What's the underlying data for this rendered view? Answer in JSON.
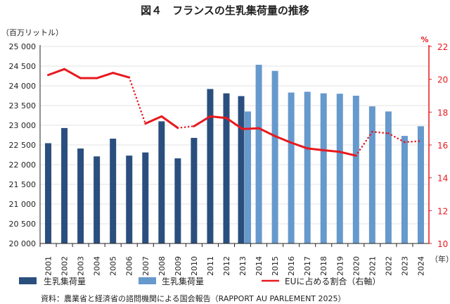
{
  "chart_data": {
    "type": "bar",
    "title": "図４　フランスの生乳集荷量の推移",
    "ylabel": "（百万リットル）",
    "y2label": "%",
    "xlabel": "（年）",
    "ylim": [
      20000,
      25000
    ],
    "yticks": [
      "20 000",
      "20 500",
      "21 000",
      "21 500",
      "22 000",
      "22 500",
      "23 000",
      "23 500",
      "24 000",
      "24 500",
      "25 000"
    ],
    "y2lim": [
      10,
      22
    ],
    "y2ticks": [
      "10",
      "12",
      "14",
      "16",
      "18",
      "20",
      "22"
    ],
    "categories": [
      "2001",
      "2002",
      "2003",
      "2004",
      "2005",
      "2006",
      "2007",
      "2008",
      "2009",
      "2010",
      "2011",
      "2012",
      "2013",
      "2014",
      "2015",
      "2016",
      "2017",
      "2018",
      "2019",
      "2020",
      "2021",
      "2022",
      "2023",
      "2024"
    ],
    "series": [
      {
        "name": "生乳集荷量",
        "kind": "bar",
        "color": "#2a4f7e",
        "values": [
          22545,
          22930,
          22410,
          22210,
          22660,
          22230,
          22310,
          23100,
          22160,
          22680,
          23920,
          23810,
          23740,
          null,
          null,
          null,
          null,
          null,
          null,
          null,
          null,
          null,
          null,
          null
        ]
      },
      {
        "name": "生乳集荷量",
        "kind": "bar",
        "color": "#6699cc",
        "values": [
          null,
          null,
          null,
          null,
          null,
          null,
          null,
          null,
          null,
          null,
          null,
          null,
          23350,
          24535,
          24380,
          23830,
          23850,
          23810,
          23800,
          23750,
          23480,
          23350,
          22730,
          22975
        ]
      },
      {
        "name": "EUに占める割合（右軸）",
        "kind": "line",
        "axis": "right",
        "color": "#e8181e",
        "values": [
          20.26,
          20.62,
          20.07,
          20.07,
          20.39,
          20.11,
          17.3,
          17.74,
          17.04,
          17.14,
          17.74,
          17.64,
          16.97,
          17.02,
          16.54,
          16.14,
          15.79,
          15.68,
          15.58,
          15.35,
          16.8,
          16.71,
          16.17,
          16.24
        ],
        "dotted_segments": [
          [
            2006,
            2007
          ],
          [
            2009,
            2010
          ],
          [
            2020,
            2021
          ],
          [
            2021,
            2022
          ],
          [
            2022,
            2023
          ],
          [
            2023,
            2024
          ]
        ]
      }
    ],
    "grid": true,
    "legend": "bottom",
    "source": "資料：農業省と経済省の諮問機関による国会報告（RAPPORT AU PARLEMENT 2025）"
  }
}
